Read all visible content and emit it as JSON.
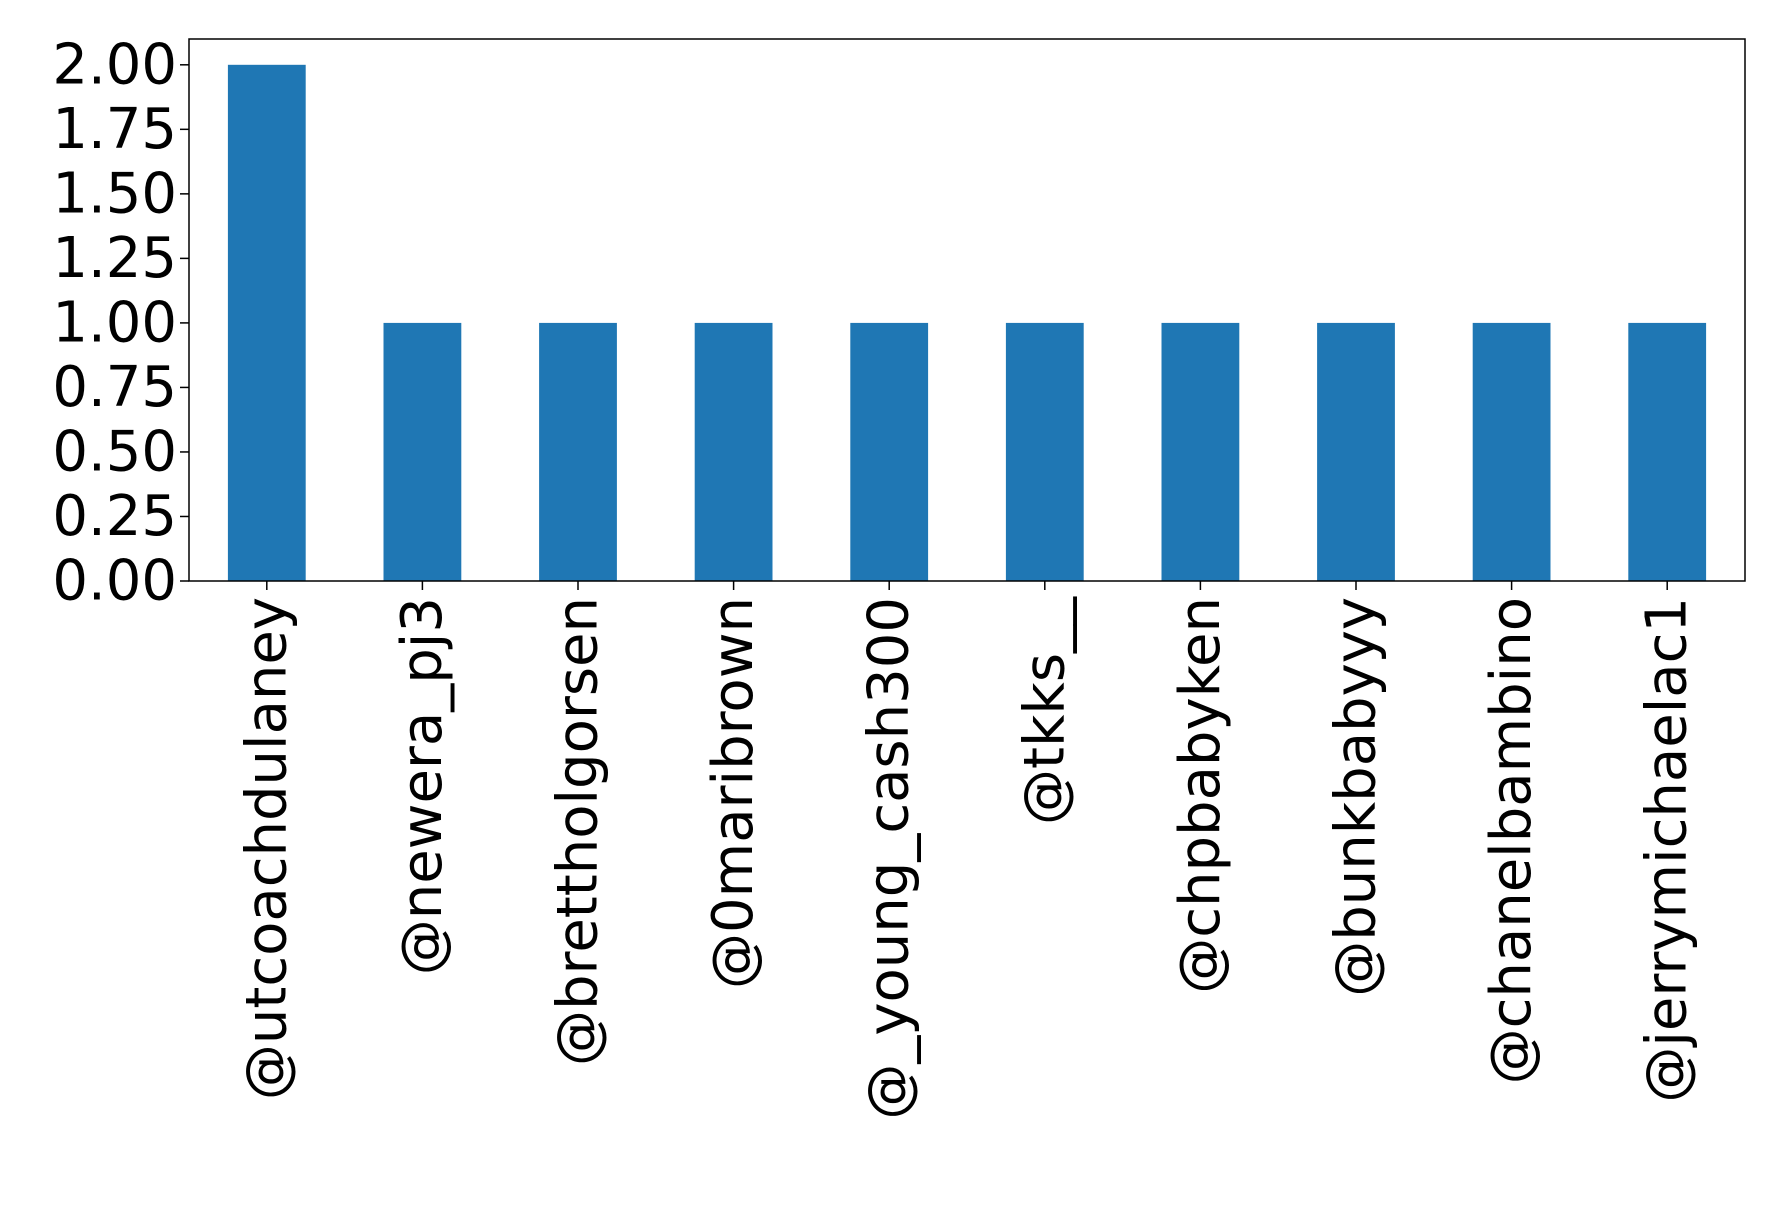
{
  "chart_data": {
    "type": "bar",
    "title": "",
    "xlabel": "",
    "ylabel": "",
    "categories": [
      "@utcoachdulaney",
      "@newera_pj3",
      "@brettholgorsen",
      "@0maribrown",
      "@_young_cash300",
      "@tkks__",
      "@chpbabyken",
      "@bunkbabyyy",
      "@chanelbambino",
      "@jerrymichaelac1"
    ],
    "values": [
      2,
      1,
      1,
      1,
      1,
      1,
      1,
      1,
      1,
      1
    ],
    "ylim": [
      0,
      2.1
    ],
    "yticks": [
      "0.00",
      "0.25",
      "0.50",
      "0.75",
      "1.00",
      "1.25",
      "1.50",
      "1.75",
      "2.00"
    ],
    "grid": false,
    "legend": "none",
    "colors": {
      "bar": "#1f77b4",
      "axis": "#000000",
      "background": "#ffffff"
    }
  }
}
